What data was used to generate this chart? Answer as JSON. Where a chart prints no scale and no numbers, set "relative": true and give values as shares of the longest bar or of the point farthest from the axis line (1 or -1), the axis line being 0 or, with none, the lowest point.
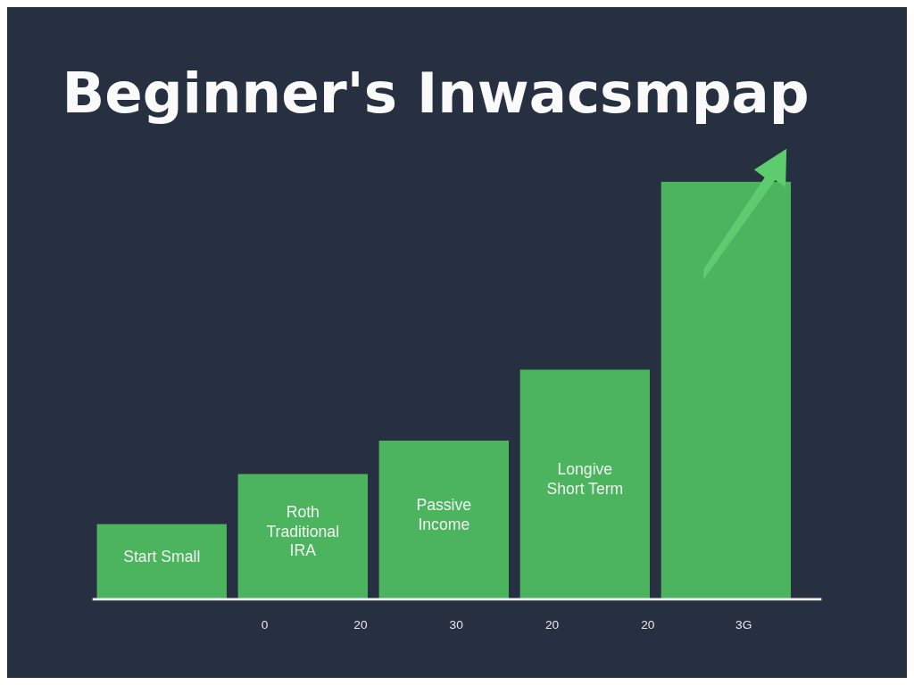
{
  "chart_data": {
    "type": "bar",
    "title": "Beginner's Inwacsmpap",
    "relative": true,
    "categories": [
      "Start Small",
      "Roth\nTraditional\nIRA",
      "Passive\nIncome",
      "Longive\nShort Term",
      null
    ],
    "values": [
      0.18,
      0.3,
      0.38,
      0.55,
      1
    ],
    "color": "#4cb45f",
    "grid": false,
    "annotations": [
      "0",
      "20",
      "30",
      "20",
      "20",
      "3G"
    ]
  }
}
